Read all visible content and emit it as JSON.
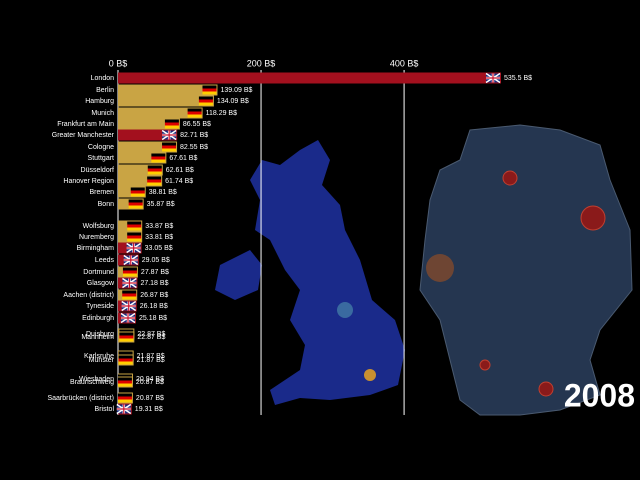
{
  "chart_data": {
    "type": "bar",
    "orientation": "horizontal",
    "categories": [
      "London",
      "Berlin",
      "Hamburg",
      "Munich",
      "Frankfurt am Main",
      "Greater Manchester",
      "Cologne",
      "Stuttgart",
      "Düsseldorf",
      "Hanover Region",
      "Bremen",
      "Bonn",
      "Wolfsburg",
      "Nuremberg",
      "Birmingham",
      "Leeds",
      "Dortmund",
      "Glasgow",
      "Aachen (district)",
      "Tyneside",
      "Edinburgh",
      "Duisburg",
      "Mannheim",
      "Karlsruhe",
      "Münster",
      "Wiesbaden",
      "Braunschweig",
      "Saarbrücken (district)",
      "Bristol"
    ],
    "values": [
      535.5,
      139.09,
      134.09,
      118.29,
      86.55,
      82.71,
      82.55,
      67.61,
      62.61,
      61.74,
      38.81,
      35.87,
      33.87,
      33.81,
      33.05,
      29.05,
      27.87,
      27.18,
      26.87,
      26.18,
      25.18,
      22.87,
      22.87,
      21.87,
      21.87,
      20.94,
      20.87,
      20.87,
      19.31
    ],
    "value_labels": [
      "535.5 B$",
      "139.09 B$",
      "134.09 B$",
      "118.29 B$",
      "86.55 B$",
      "82.71 B$",
      "82.55 B$",
      "67.61 B$",
      "62.61 B$",
      "61.74 B$",
      "38.81 B$",
      "35.87 B$",
      "33.87 B$",
      "33.81 B$",
      "33.05 B$",
      "29.05 B$",
      "27.87 B$",
      "27.18 B$",
      "26.87 B$",
      "26.18 B$",
      "25.18 B$",
      "22.87 B$",
      "22.87 B$",
      "21.87 B$",
      "21.87 B$",
      "20.94 B$",
      "20.87 B$",
      "20.87 B$",
      "19.31 B$"
    ],
    "colors": [
      "#a3101e",
      "#c9a444",
      "#c9a444",
      "#c9a444",
      "#c9a444",
      "#a3101e",
      "#c9a444",
      "#c9a444",
      "#c9a444",
      "#c9a444",
      "#c9a444",
      "#c9a444",
      "#c9a444",
      "#c9a444",
      "#a3101e",
      "#a3101e",
      "#c9a444",
      "#a3101e",
      "#c9a444",
      "#a3101e",
      "#a3101e",
      "#c9a444",
      "#c9a444",
      "#c9a444",
      "#c9a444",
      "#c9a444",
      "#c9a444",
      "#c9a444",
      "#a3101e"
    ],
    "xlim": [
      0,
      535.5
    ],
    "xticks": [
      {
        "value": 0,
        "label": "0 B$"
      },
      {
        "value": 200,
        "label": "200 B$"
      },
      {
        "value": 400,
        "label": "400 B$"
      }
    ],
    "grid": true,
    "year_label": "2008"
  }
}
